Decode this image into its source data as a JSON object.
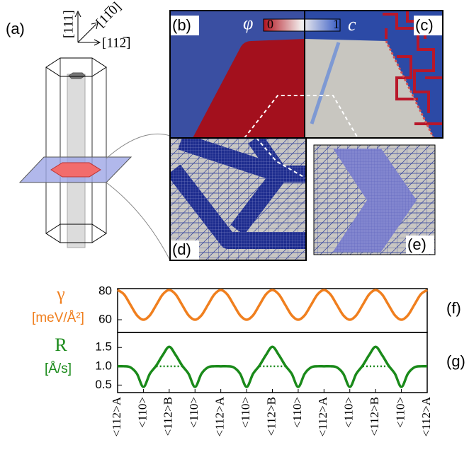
{
  "panels": {
    "a": "(a)",
    "b": "(b)",
    "c": "(c)",
    "d": "(d)",
    "e": "(e)"
  },
  "directions": [
    "[111]",
    "[11̅0]",
    "[112̅]"
  ],
  "colorbar": {
    "left_symbol": "φ",
    "right_symbol": "c",
    "ticks": [
      0,
      1
    ]
  },
  "chart_data": [
    {
      "type": "line",
      "panel_label": "(f)",
      "ylabel": "γ",
      "yunit": "[meV/Å²]",
      "xlim": [
        0,
        12
      ],
      "ylim": [
        51,
        82
      ],
      "yticks": [
        60,
        80
      ],
      "x": [
        0,
        0.25,
        0.5,
        0.75,
        1,
        1.25,
        1.5,
        1.75,
        2,
        2.25,
        2.5,
        2.75,
        3,
        3.25,
        3.5,
        3.75,
        4,
        4.25,
        4.5,
        4.75,
        5,
        5.25,
        5.5,
        5.75,
        6,
        6.25,
        6.5,
        6.75,
        7,
        7.25,
        7.5,
        7.75,
        8,
        8.25,
        8.5,
        8.75,
        9,
        9.25,
        9.5,
        9.75,
        10,
        10.25,
        10.5,
        10.75,
        11,
        11.25,
        11.5,
        11.75,
        12
      ],
      "series": [
        {
          "color": "#f07f1e",
          "style": "solid",
          "values": [
            81,
            77.9,
            70.5,
            63.1,
            60,
            63.1,
            70.5,
            77.9,
            81,
            77.9,
            70.5,
            63.1,
            60,
            63.1,
            70.5,
            77.9,
            81,
            77.9,
            70.5,
            63.1,
            60,
            63.1,
            70.5,
            77.9,
            81,
            77.9,
            70.5,
            63.1,
            60,
            63.1,
            70.5,
            77.9,
            81,
            77.9,
            70.5,
            63.1,
            60,
            63.1,
            70.5,
            77.9,
            81,
            77.9,
            70.5,
            63.1,
            60,
            63.1,
            70.5,
            77.9,
            81
          ]
        }
      ]
    },
    {
      "type": "line",
      "panel_label": "(g)",
      "ylabel": "R",
      "yunit": "[Å/s]",
      "xlim": [
        0,
        12
      ],
      "ylim": [
        0.3,
        1.9
      ],
      "yticks": [
        0.5,
        {
          "value": 1,
          "label": "1.0"
        },
        1.5
      ],
      "xticks": [
        {
          "value": 0,
          "label": "<112>A"
        },
        {
          "value": 1,
          "label": "<110>"
        },
        {
          "value": 2,
          "label": "<112>B"
        },
        {
          "value": 3,
          "label": "<110>"
        },
        {
          "value": 4,
          "label": "<112>A"
        },
        {
          "value": 5,
          "label": "<110>"
        },
        {
          "value": 6,
          "label": "<112>B"
        },
        {
          "value": 7,
          "label": "<110>"
        },
        {
          "value": 8,
          "label": "<112>A"
        },
        {
          "value": 9,
          "label": "<110>"
        },
        {
          "value": 10,
          "label": "<112>B"
        },
        {
          "value": 11,
          "label": "<110>"
        },
        {
          "value": 12,
          "label": "<112>A"
        }
      ],
      "x": [
        0,
        0.25,
        0.5,
        0.75,
        1,
        1.25,
        1.5,
        1.75,
        2,
        2.25,
        2.5,
        2.75,
        3,
        3.25,
        3.5,
        3.75,
        4,
        4.25,
        4.5,
        4.75,
        5,
        5.25,
        5.5,
        5.75,
        6,
        6.25,
        6.5,
        6.75,
        7,
        7.25,
        7.5,
        7.75,
        8,
        8.25,
        8.5,
        8.75,
        9,
        9.25,
        9.5,
        9.75,
        10,
        10.25,
        10.5,
        10.75,
        11,
        11.25,
        11.5,
        11.75,
        12
      ],
      "series": [
        {
          "color": "#1a8a1a",
          "style": "solid",
          "values": [
            1,
            1,
            0.97,
            0.8,
            0.45,
            0.8,
            1.02,
            1.3,
            1.52,
            1.3,
            1.02,
            0.8,
            0.45,
            0.8,
            0.97,
            1,
            1,
            1,
            0.97,
            0.8,
            0.45,
            0.8,
            1.02,
            1.3,
            1.52,
            1.3,
            1.02,
            0.8,
            0.45,
            0.8,
            0.97,
            1,
            1,
            1,
            0.97,
            0.8,
            0.45,
            0.8,
            1.02,
            1.3,
            1.52,
            1.3,
            1.02,
            0.8,
            0.45,
            0.8,
            0.97,
            1,
            1
          ]
        },
        {
          "color": "#1a8a1a",
          "style": "dotted",
          "values": [
            null,
            null,
            null,
            null,
            null,
            null,
            1,
            1,
            1,
            1,
            1,
            null,
            null,
            null,
            null,
            null,
            null,
            null,
            null,
            null,
            null,
            null,
            1,
            1,
            1,
            1,
            1,
            null,
            null,
            null,
            null,
            null,
            null,
            null,
            null,
            null,
            null,
            null,
            1,
            1,
            1,
            1,
            1,
            null,
            null,
            null,
            null,
            null,
            null
          ]
        }
      ]
    }
  ]
}
